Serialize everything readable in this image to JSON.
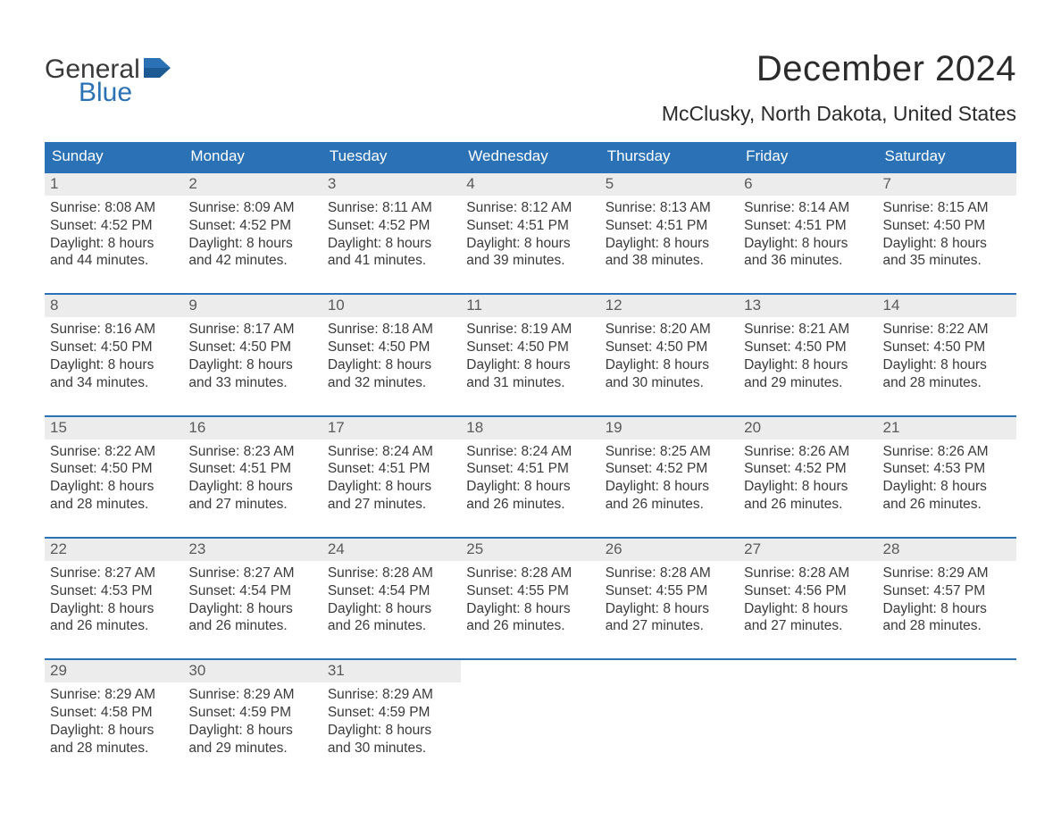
{
  "brand": {
    "text1": "General",
    "text2": "Blue",
    "flag_color": "#2a72b5",
    "text_color": "#3a3a3a"
  },
  "title": "December 2024",
  "location": "McClusky, North Dakota, United States",
  "colors": {
    "header_bg": "#2a72b5",
    "header_text": "#ffffff",
    "week_border": "#2a72b5",
    "daynum_bg": "#ececec",
    "daynum_text": "#5a5a5a",
    "body_text": "#3a3a3a",
    "page_bg": "#ffffff"
  },
  "fonts": {
    "title_size": 40,
    "location_size": 23,
    "dow_size": 17,
    "daynum_size": 17,
    "body_size": 15.5
  },
  "days_of_week": [
    "Sunday",
    "Monday",
    "Tuesday",
    "Wednesday",
    "Thursday",
    "Friday",
    "Saturday"
  ],
  "labels": {
    "sunrise": "Sunrise:",
    "sunset": "Sunset:",
    "daylight": "Daylight:"
  },
  "weeks": [
    [
      {
        "n": "1",
        "sunrise": "8:08 AM",
        "sunset": "4:52 PM",
        "dl1": "8 hours",
        "dl2": "and 44 minutes."
      },
      {
        "n": "2",
        "sunrise": "8:09 AM",
        "sunset": "4:52 PM",
        "dl1": "8 hours",
        "dl2": "and 42 minutes."
      },
      {
        "n": "3",
        "sunrise": "8:11 AM",
        "sunset": "4:52 PM",
        "dl1": "8 hours",
        "dl2": "and 41 minutes."
      },
      {
        "n": "4",
        "sunrise": "8:12 AM",
        "sunset": "4:51 PM",
        "dl1": "8 hours",
        "dl2": "and 39 minutes."
      },
      {
        "n": "5",
        "sunrise": "8:13 AM",
        "sunset": "4:51 PM",
        "dl1": "8 hours",
        "dl2": "and 38 minutes."
      },
      {
        "n": "6",
        "sunrise": "8:14 AM",
        "sunset": "4:51 PM",
        "dl1": "8 hours",
        "dl2": "and 36 minutes."
      },
      {
        "n": "7",
        "sunrise": "8:15 AM",
        "sunset": "4:50 PM",
        "dl1": "8 hours",
        "dl2": "and 35 minutes."
      }
    ],
    [
      {
        "n": "8",
        "sunrise": "8:16 AM",
        "sunset": "4:50 PM",
        "dl1": "8 hours",
        "dl2": "and 34 minutes."
      },
      {
        "n": "9",
        "sunrise": "8:17 AM",
        "sunset": "4:50 PM",
        "dl1": "8 hours",
        "dl2": "and 33 minutes."
      },
      {
        "n": "10",
        "sunrise": "8:18 AM",
        "sunset": "4:50 PM",
        "dl1": "8 hours",
        "dl2": "and 32 minutes."
      },
      {
        "n": "11",
        "sunrise": "8:19 AM",
        "sunset": "4:50 PM",
        "dl1": "8 hours",
        "dl2": "and 31 minutes."
      },
      {
        "n": "12",
        "sunrise": "8:20 AM",
        "sunset": "4:50 PM",
        "dl1": "8 hours",
        "dl2": "and 30 minutes."
      },
      {
        "n": "13",
        "sunrise": "8:21 AM",
        "sunset": "4:50 PM",
        "dl1": "8 hours",
        "dl2": "and 29 minutes."
      },
      {
        "n": "14",
        "sunrise": "8:22 AM",
        "sunset": "4:50 PM",
        "dl1": "8 hours",
        "dl2": "and 28 minutes."
      }
    ],
    [
      {
        "n": "15",
        "sunrise": "8:22 AM",
        "sunset": "4:50 PM",
        "dl1": "8 hours",
        "dl2": "and 28 minutes."
      },
      {
        "n": "16",
        "sunrise": "8:23 AM",
        "sunset": "4:51 PM",
        "dl1": "8 hours",
        "dl2": "and 27 minutes."
      },
      {
        "n": "17",
        "sunrise": "8:24 AM",
        "sunset": "4:51 PM",
        "dl1": "8 hours",
        "dl2": "and 27 minutes."
      },
      {
        "n": "18",
        "sunrise": "8:24 AM",
        "sunset": "4:51 PM",
        "dl1": "8 hours",
        "dl2": "and 26 minutes."
      },
      {
        "n": "19",
        "sunrise": "8:25 AM",
        "sunset": "4:52 PM",
        "dl1": "8 hours",
        "dl2": "and 26 minutes."
      },
      {
        "n": "20",
        "sunrise": "8:26 AM",
        "sunset": "4:52 PM",
        "dl1": "8 hours",
        "dl2": "and 26 minutes."
      },
      {
        "n": "21",
        "sunrise": "8:26 AM",
        "sunset": "4:53 PM",
        "dl1": "8 hours",
        "dl2": "and 26 minutes."
      }
    ],
    [
      {
        "n": "22",
        "sunrise": "8:27 AM",
        "sunset": "4:53 PM",
        "dl1": "8 hours",
        "dl2": "and 26 minutes."
      },
      {
        "n": "23",
        "sunrise": "8:27 AM",
        "sunset": "4:54 PM",
        "dl1": "8 hours",
        "dl2": "and 26 minutes."
      },
      {
        "n": "24",
        "sunrise": "8:28 AM",
        "sunset": "4:54 PM",
        "dl1": "8 hours",
        "dl2": "and 26 minutes."
      },
      {
        "n": "25",
        "sunrise": "8:28 AM",
        "sunset": "4:55 PM",
        "dl1": "8 hours",
        "dl2": "and 26 minutes."
      },
      {
        "n": "26",
        "sunrise": "8:28 AM",
        "sunset": "4:55 PM",
        "dl1": "8 hours",
        "dl2": "and 27 minutes."
      },
      {
        "n": "27",
        "sunrise": "8:28 AM",
        "sunset": "4:56 PM",
        "dl1": "8 hours",
        "dl2": "and 27 minutes."
      },
      {
        "n": "28",
        "sunrise": "8:29 AM",
        "sunset": "4:57 PM",
        "dl1": "8 hours",
        "dl2": "and 28 minutes."
      }
    ],
    [
      {
        "n": "29",
        "sunrise": "8:29 AM",
        "sunset": "4:58 PM",
        "dl1": "8 hours",
        "dl2": "and 28 minutes."
      },
      {
        "n": "30",
        "sunrise": "8:29 AM",
        "sunset": "4:59 PM",
        "dl1": "8 hours",
        "dl2": "and 29 minutes."
      },
      {
        "n": "31",
        "sunrise": "8:29 AM",
        "sunset": "4:59 PM",
        "dl1": "8 hours",
        "dl2": "and 30 minutes."
      },
      {
        "empty": true
      },
      {
        "empty": true
      },
      {
        "empty": true
      },
      {
        "empty": true
      }
    ]
  ]
}
